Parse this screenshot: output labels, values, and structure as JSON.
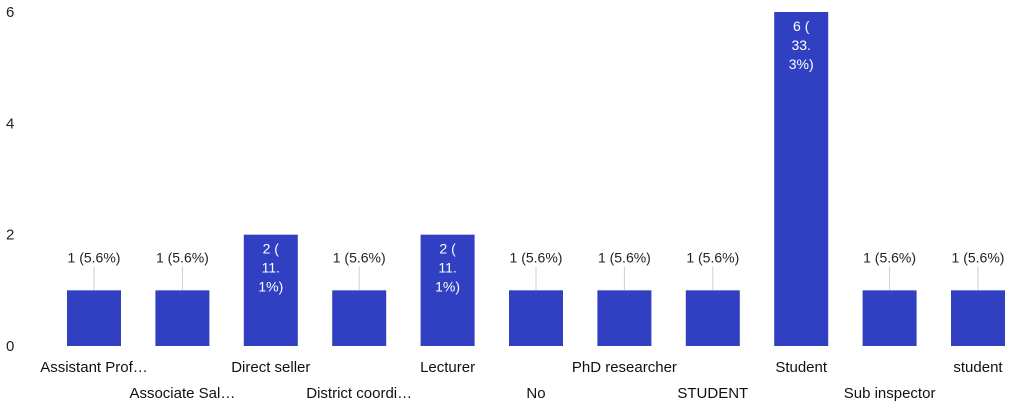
{
  "chart_data": {
    "type": "bar",
    "categories": [
      "Assistant Prof…",
      "Associate Sal…",
      "Direct seller",
      "District coordi…",
      "Lecturer",
      "No",
      "PhD researcher",
      "STUDENT",
      "Student",
      "Sub inspector",
      "student"
    ],
    "values": [
      1,
      1,
      2,
      1,
      2,
      1,
      1,
      1,
      6,
      1,
      1
    ],
    "data_labels": [
      "1 (5.6%)",
      "1 (5.6%)",
      "2 (11.1%)",
      "1 (5.6%)",
      "2 (11.1%)",
      "1 (5.6%)",
      "1 (5.6%)",
      "1 (5.6%)",
      "6 (33.3%)",
      "1 (5.6%)",
      "1 (5.6%)"
    ],
    "data_label_lines": [
      [
        "1 (5.6%)"
      ],
      [
        "1 (5.6%)"
      ],
      [
        "2 (",
        "11.",
        "1%)"
      ],
      [
        "1 (5.6%)"
      ],
      [
        "2 (",
        "11.",
        "1%)"
      ],
      [
        "1 (5.6%)"
      ],
      [
        "1 (5.6%)"
      ],
      [
        "1 (5.6%)"
      ],
      [
        "6 (",
        "33.",
        "3%)"
      ],
      [
        "1 (5.6%)"
      ],
      [
        "1 (5.6%)"
      ]
    ],
    "yticks": [
      0,
      2,
      4,
      6
    ],
    "ylim": [
      0,
      6
    ],
    "bar_color": "#3140c2",
    "grid": false,
    "legend": "none"
  }
}
